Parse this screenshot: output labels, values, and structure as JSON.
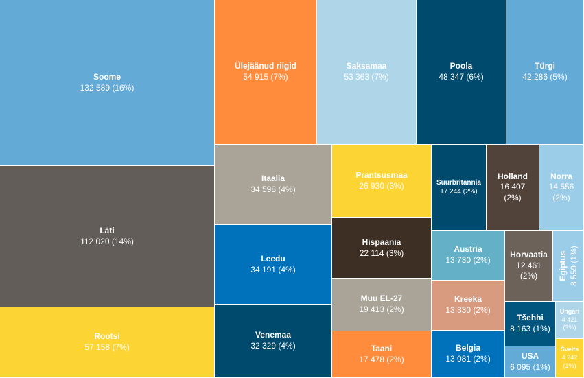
{
  "chart_data": {
    "type": "treemap",
    "tiles": [
      {
        "name": "Soome",
        "value": 132589,
        "label": "132 589 (16%)",
        "color": "#64aad6"
      },
      {
        "name": "Läti",
        "value": 112020,
        "label": "112 020 (14%)",
        "color": "#625d59"
      },
      {
        "name": "Rootsi",
        "value": 57158,
        "label": "57 158 (7%)",
        "color": "#fcd535"
      },
      {
        "name": "Ülejäänud riigid",
        "value": 54915,
        "label": "54 915 (7%)",
        "color": "#ff8c3d"
      },
      {
        "name": "Saksamaa",
        "value": 53363,
        "label": "53 363 (7%)",
        "color": "#afd5e9"
      },
      {
        "name": "Poola",
        "value": 48347,
        "label": "48 347 (6%)",
        "color": "#004a6d"
      },
      {
        "name": "Türgi",
        "value": 42286,
        "label": "42 286 (5%)",
        "color": "#64aad6"
      },
      {
        "name": "Itaalia",
        "value": 34598,
        "label": "34 598 (4%)",
        "color": "#a9a497"
      },
      {
        "name": "Leedu",
        "value": 34191,
        "label": "34 191 (4%)",
        "color": "#0071bb"
      },
      {
        "name": "Venemaa",
        "value": 32329,
        "label": "32 329 (4%)",
        "color": "#004a6d"
      },
      {
        "name": "Prantsusmaa",
        "value": 26930,
        "label": "26 930 (3%)",
        "color": "#fcd535"
      },
      {
        "name": "Hispaania",
        "value": 22114,
        "label": "22 114 (3%)",
        "color": "#3d2f23"
      },
      {
        "name": "Muu EL-27",
        "value": 19413,
        "label": "19 413 (2%)",
        "color": "#a9a497"
      },
      {
        "name": "Taani",
        "value": 17478,
        "label": "17 478 (2%)",
        "color": "#ff8c3d"
      },
      {
        "name": "Suurbritannia",
        "value": 17244,
        "label": "17 244 (2%)",
        "color": "#004a6d"
      },
      {
        "name": "Holland",
        "value": 16407,
        "label1": "16 407",
        "label2": "(2%)",
        "color": "#51423a"
      },
      {
        "name": "Norra",
        "value": 14556,
        "label1": "14 556",
        "label2": "(2%)",
        "color": "#9ccde8"
      },
      {
        "name": "Austria",
        "value": 13730,
        "label": "13 730 (2%)",
        "color": "#64b1c7"
      },
      {
        "name": "Kreeka",
        "value": 13330,
        "label": "13 330 (2%)",
        "color": "#d99b80"
      },
      {
        "name": "Belgia",
        "value": 13081,
        "label": "13 081 (2%)",
        "color": "#0071bb"
      },
      {
        "name": "Horvaatia",
        "value": 12461,
        "label1": "12 461",
        "label2": "(2%)",
        "color": "#6c625a"
      },
      {
        "name": "Egiptus",
        "value": 8559,
        "label": "8 559 (1%)",
        "color": "#9ccde8"
      },
      {
        "name": "Tšehhi",
        "value": 8163,
        "label": "8 163 (1%)",
        "color": "#00557f"
      },
      {
        "name": "Ungari",
        "value": 4421,
        "label1": "4 421",
        "label2": "(1%)",
        "color": "#afd5e9"
      },
      {
        "name": "USA",
        "value": 6095,
        "label": "6 095 (1%)",
        "color": "#64aad6"
      },
      {
        "name": "Šveits",
        "value": 4242,
        "label1": "4 242",
        "label2": "(1%)",
        "color": "#fcd535"
      }
    ]
  }
}
